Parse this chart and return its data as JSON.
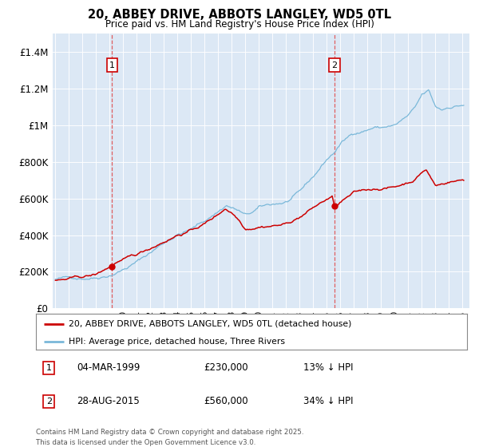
{
  "title": "20, ABBEY DRIVE, ABBOTS LANGLEY, WD5 0TL",
  "subtitle": "Price paid vs. HM Land Registry's House Price Index (HPI)",
  "legend_red": "20, ABBEY DRIVE, ABBOTS LANGLEY, WD5 0TL (detached house)",
  "legend_blue": "HPI: Average price, detached house, Three Rivers",
  "sale1_date": "04-MAR-1999",
  "sale1_price": 230000,
  "sale1_hpi": "13% ↓ HPI",
  "sale1_year": 1999.167,
  "sale2_date": "28-AUG-2015",
  "sale2_price": 560000,
  "sale2_hpi": "34% ↓ HPI",
  "sale2_year": 2015.583,
  "footnote_line1": "Contains HM Land Registry data © Crown copyright and database right 2025.",
  "footnote_line2": "This data is licensed under the Open Government Licence v3.0.",
  "bg_color": "#dce8f5",
  "red_color": "#cc0000",
  "blue_color": "#7ab8d9",
  "ylim": [
    0,
    1500000
  ],
  "yticks": [
    0,
    200000,
    400000,
    600000,
    800000,
    1000000,
    1200000,
    1400000
  ],
  "xlim_left": 1994.8,
  "xlim_right": 2025.5,
  "year_start": 1995,
  "year_end": 2025
}
